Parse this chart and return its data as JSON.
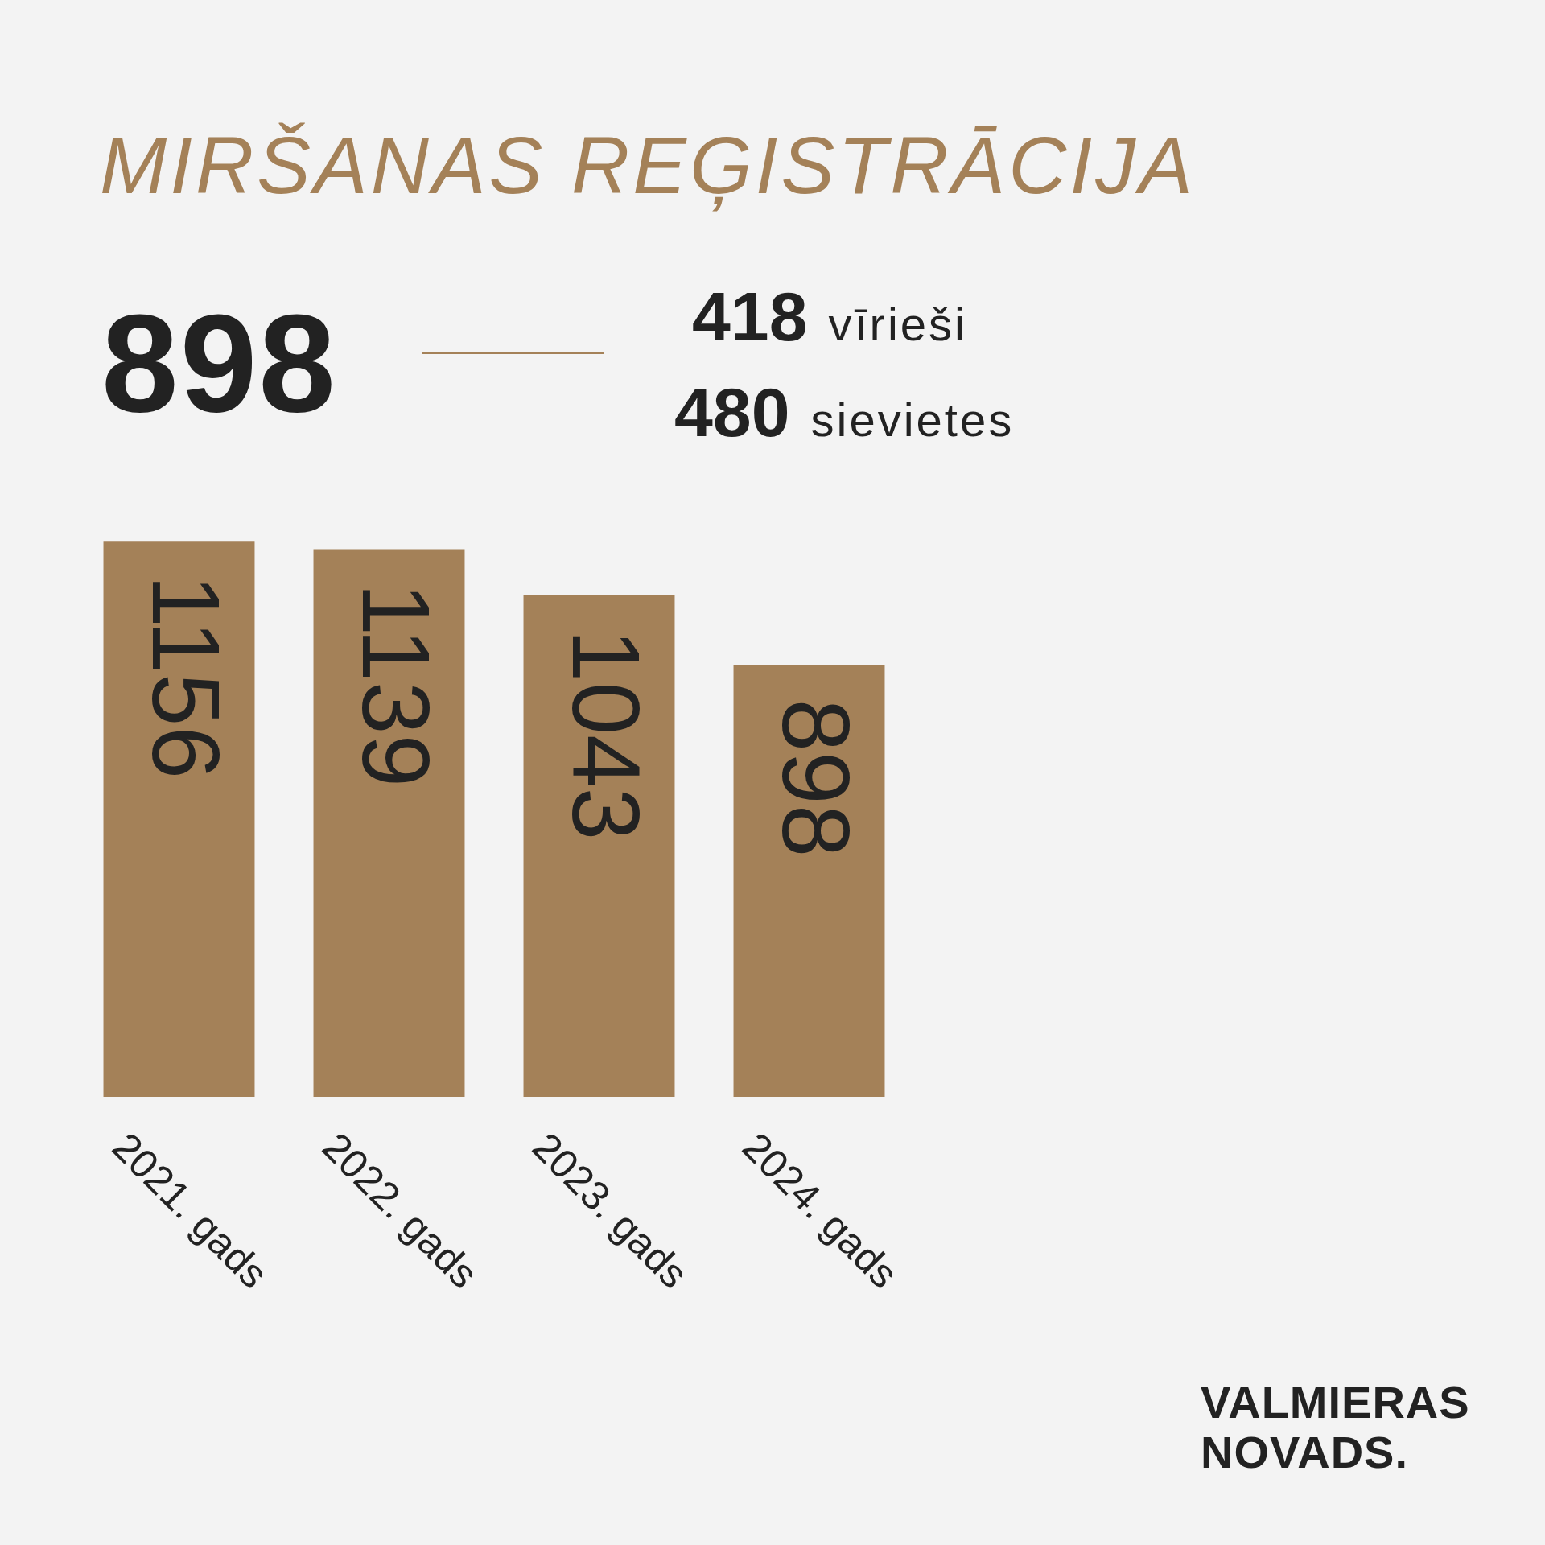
{
  "chart_data": {
    "type": "bar",
    "title": "MIRŠANAS REĢISTRĀCIJA",
    "categories": [
      "2021. gads",
      "2022. gads",
      "2023. gads",
      "2024. gads"
    ],
    "values": [
      1156,
      1139,
      1043,
      898
    ],
    "color": "#a48158",
    "tick_labels": "x",
    "legend": false,
    "data_labels": true,
    "annotations": [
      "898",
      "418 vīrieši",
      "480 sievietes",
      "VALMIERAS NOVADS."
    ]
  }
}
